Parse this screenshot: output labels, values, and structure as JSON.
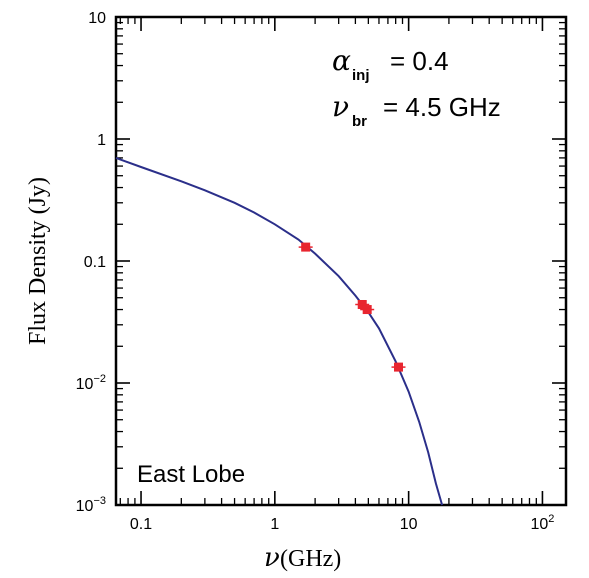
{
  "chart_data": {
    "type": "scatter",
    "panel_label": "East Lobe",
    "annotations": [
      {
        "symbol": "α",
        "sub": "inj",
        "rest": "= 0.4"
      },
      {
        "symbol": "ν",
        "sub": "br",
        "rest": "= 4.5 GHz"
      }
    ],
    "xlabel": {
      "symbol": "ν",
      "text": "(GHz)"
    },
    "ylabel": "Flux Density (Jy)",
    "xscale": "log",
    "yscale": "log",
    "xlim": [
      0.065,
      150
    ],
    "ylim": [
      0.001,
      10
    ],
    "x_ticks": [
      {
        "value": 0.1,
        "label": "0.1"
      },
      {
        "value": 1,
        "label": "1"
      },
      {
        "value": 10,
        "label": "10"
      },
      {
        "value": 100,
        "label": "10",
        "sup": "2"
      }
    ],
    "y_ticks": [
      {
        "value": 0.001,
        "label": "10",
        "sup": "−3"
      },
      {
        "value": 0.01,
        "label": "10",
        "sup": "−2"
      },
      {
        "value": 0.1,
        "label": "0.1"
      },
      {
        "value": 1,
        "label": "1"
      },
      {
        "value": 10,
        "label": "10"
      }
    ],
    "points": [
      {
        "x": 1.7,
        "y": 0.13
      },
      {
        "x": 4.5,
        "y": 0.044
      },
      {
        "x": 4.9,
        "y": 0.04
      },
      {
        "x": 8.4,
        "y": 0.0135
      }
    ],
    "model_curve": [
      {
        "x": 0.065,
        "y": 0.7
      },
      {
        "x": 0.1,
        "y": 0.59
      },
      {
        "x": 0.2,
        "y": 0.45
      },
      {
        "x": 0.3,
        "y": 0.38
      },
      {
        "x": 0.5,
        "y": 0.3
      },
      {
        "x": 0.7,
        "y": 0.25
      },
      {
        "x": 1.0,
        "y": 0.2
      },
      {
        "x": 1.5,
        "y": 0.15
      },
      {
        "x": 2.0,
        "y": 0.115
      },
      {
        "x": 3.0,
        "y": 0.075
      },
      {
        "x": 4.0,
        "y": 0.052
      },
      {
        "x": 5.0,
        "y": 0.038
      },
      {
        "x": 6.0,
        "y": 0.028
      },
      {
        "x": 8.0,
        "y": 0.015
      },
      {
        "x": 10.0,
        "y": 0.0085
      },
      {
        "x": 12.0,
        "y": 0.0048
      },
      {
        "x": 14.0,
        "y": 0.0027
      },
      {
        "x": 16.0,
        "y": 0.0015
      },
      {
        "x": 17.8,
        "y": 0.001
      }
    ],
    "colors": {
      "points": "#e8252f",
      "curve": "#2b2f8a",
      "axes": "#000000"
    }
  }
}
